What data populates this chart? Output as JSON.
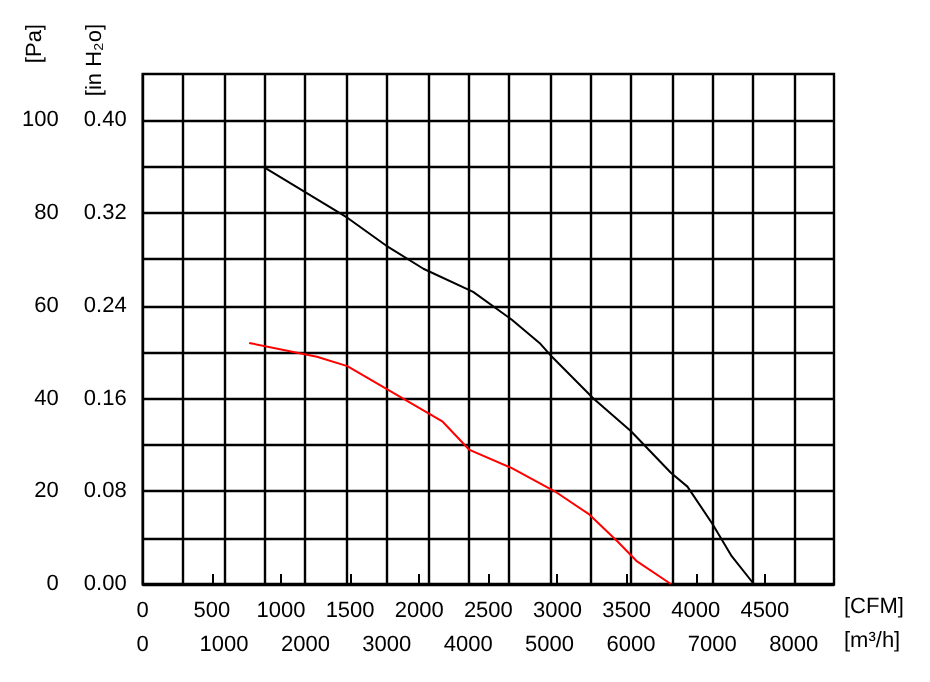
{
  "chart_data": {
    "type": "line",
    "xlabel": "[CFM]",
    "x2label": "[m³/h]",
    "ylabel": "[Pa]",
    "y2label": "[in H₂o]",
    "xlim": [
      0,
      5000
    ],
    "xticks": [
      0,
      500,
      1000,
      1500,
      2000,
      2500,
      3000,
      3500,
      4000,
      4500
    ],
    "x2lim": [
      0,
      8495
    ],
    "x2ticks": [
      0,
      {
        "value": 500,
        "label": null
      },
      1000,
      {
        "value": 1500,
        "label": null
      },
      2000,
      {
        "value": 2500,
        "label": null
      },
      3000,
      {
        "value": 3500,
        "label": null
      },
      4000,
      {
        "value": 4500,
        "label": null
      },
      5000,
      {
        "value": 5500,
        "label": null
      },
      6000,
      {
        "value": 6500,
        "label": null
      },
      7000,
      {
        "value": 7500,
        "label": null
      },
      8000
    ],
    "ylim": [
      0,
      110
    ],
    "yticks": [
      0,
      20,
      40,
      60,
      80,
      100
    ],
    "y2lim": [
      0,
      0.44
    ],
    "y2ticks": [
      {
        "value": 0,
        "label": "0.00"
      },
      {
        "value": 0.04,
        "label": null
      },
      {
        "value": 0.08,
        "label": "0.08"
      },
      {
        "value": 0.12,
        "label": null
      },
      {
        "value": 0.16,
        "label": "0.16"
      },
      {
        "value": 0.2,
        "label": null
      },
      {
        "value": 0.24,
        "label": "0.24"
      },
      {
        "value": 0.28,
        "label": null
      },
      {
        "value": 0.32,
        "label": "0.32"
      },
      {
        "value": 0.36,
        "label": null
      },
      {
        "value": 0.4,
        "label": "0.40"
      }
    ],
    "grid": true,
    "marker": "none",
    "line_style": "solid",
    "series": [
      {
        "color": "#000000",
        "x": [
          870,
          1480,
          1760,
          2030,
          2390,
          2670,
          2870,
          2960,
          3260,
          3530,
          3820,
          3940,
          4120,
          4260,
          4420
        ],
        "values": [
          90,
          79,
          73,
          68,
          63,
          57,
          52,
          49,
          40,
          33,
          24,
          21,
          13,
          6,
          0
        ]
      },
      {
        "color": "#ff0000",
        "x": [
          770,
          1260,
          1480,
          1710,
          1940,
          2170,
          2360,
          2670,
          2980,
          3230,
          3440,
          3570,
          3820
        ],
        "values": [
          52,
          49,
          47,
          43,
          39,
          35,
          29,
          25,
          20,
          15,
          9,
          5,
          0
        ]
      }
    ]
  }
}
